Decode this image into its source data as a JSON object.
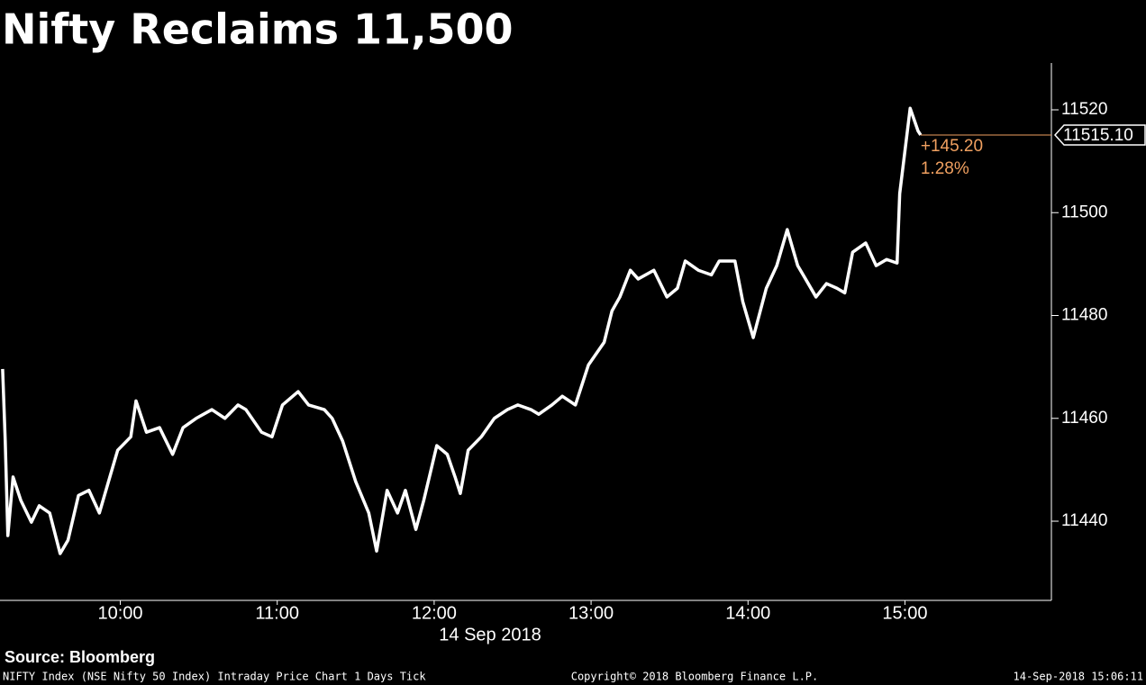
{
  "chart_data": {
    "type": "line",
    "title": "Nifty Reclaims 11,500",
    "x_label": "14 Sep 2018",
    "source": "Source: Bloomberg",
    "footer_left": "NIFTY Index (NSE Nifty 50 Index) Intraday Price Chart 1 Days  Tick",
    "footer_center": "Copyright© 2018 Bloomberg Finance L.P.",
    "footer_right": "14-Sep-2018 15:06:11",
    "last_price": "11515.10",
    "change": "+145.20",
    "change_pct": "1.28%",
    "x": [
      "09:15",
      "09:16",
      "09:17",
      "09:19",
      "09:22",
      "09:26",
      "09:29",
      "09:33",
      "09:37",
      "09:40",
      "09:44",
      "09:48",
      "09:52",
      "09:56",
      "09:59",
      "10:04",
      "10:06",
      "10:10",
      "10:15",
      "10:20",
      "10:24",
      "10:29",
      "10:35",
      "10:40",
      "10:45",
      "10:48",
      "10:54",
      "10:58",
      "11:02",
      "11:08",
      "11:12",
      "11:18",
      "11:21",
      "11:25",
      "11:30",
      "11:35",
      "11:38",
      "11:42",
      "11:46",
      "11:49",
      "11:53",
      "11:56",
      "12:01",
      "12:05",
      "12:08",
      "12:10",
      "12:13",
      "12:18",
      "12:23",
      "12:28",
      "12:32",
      "12:37",
      "12:40",
      "12:45",
      "12:49",
      "12:54",
      "12:59",
      "13:05",
      "13:08",
      "13:11",
      "13:15",
      "13:18",
      "13:24",
      "13:29",
      "13:33",
      "13:36",
      "13:41",
      "13:46",
      "13:49",
      "13:55",
      "13:58",
      "14:02",
      "14:07",
      "14:11",
      "14:15",
      "14:19",
      "14:22",
      "14:26",
      "14:30",
      "14:34",
      "14:37",
      "14:40",
      "14:45",
      "14:49",
      "14:53",
      "14:57",
      "14:58",
      "15:02",
      "15:05",
      "15:06"
    ],
    "series": [
      {
        "name": "NIFTY Index",
        "color": "#ffffff",
        "values": [
          11469.6,
          11455.6,
          11437.2,
          11448.6,
          11444,
          11439.8,
          11443,
          11441.6,
          11433.7,
          11436.3,
          11445,
          11446,
          11441.6,
          11448.6,
          11453.8,
          11456.4,
          11463.4,
          11457.3,
          11458.2,
          11453,
          11458.2,
          11460,
          11461.7,
          11460,
          11462.6,
          11461.7,
          11457.3,
          11456.4,
          11462.6,
          11465.2,
          11462.6,
          11461.7,
          11460,
          11455.6,
          11447.7,
          11441.6,
          11434.2,
          11446,
          11441.6,
          11446,
          11438.4,
          11444,
          11454.7,
          11453,
          11448.6,
          11445.4,
          11453.8,
          11456.4,
          11460,
          11461.7,
          11462.6,
          11461.7,
          11460.8,
          11462.6,
          11464.3,
          11462.6,
          11470.4,
          11474.8,
          11480.9,
          11483.6,
          11488.8,
          11487.1,
          11488.8,
          11483.6,
          11485.3,
          11490.6,
          11488.8,
          11487.9,
          11490.6,
          11490.6,
          11482.7,
          11475.7,
          11485.3,
          11489.7,
          11496.7,
          11489.7,
          11487.1,
          11483.6,
          11486.2,
          11485.3,
          11484.4,
          11492.3,
          11494.1,
          11489.7,
          11490.9,
          11490.2,
          11503.7,
          11520.3,
          11515.9,
          11515.1
        ]
      }
    ],
    "xlim": [
      "09:14",
      "15:56"
    ],
    "xticks": [
      "10:00",
      "11:00",
      "12:00",
      "13:00",
      "14:00",
      "15:00"
    ],
    "ylim": [
      11424.6,
      11529.1
    ],
    "yticks": [
      11440,
      11460,
      11480,
      11500,
      11520
    ],
    "highlight_color": "#f0a060"
  }
}
